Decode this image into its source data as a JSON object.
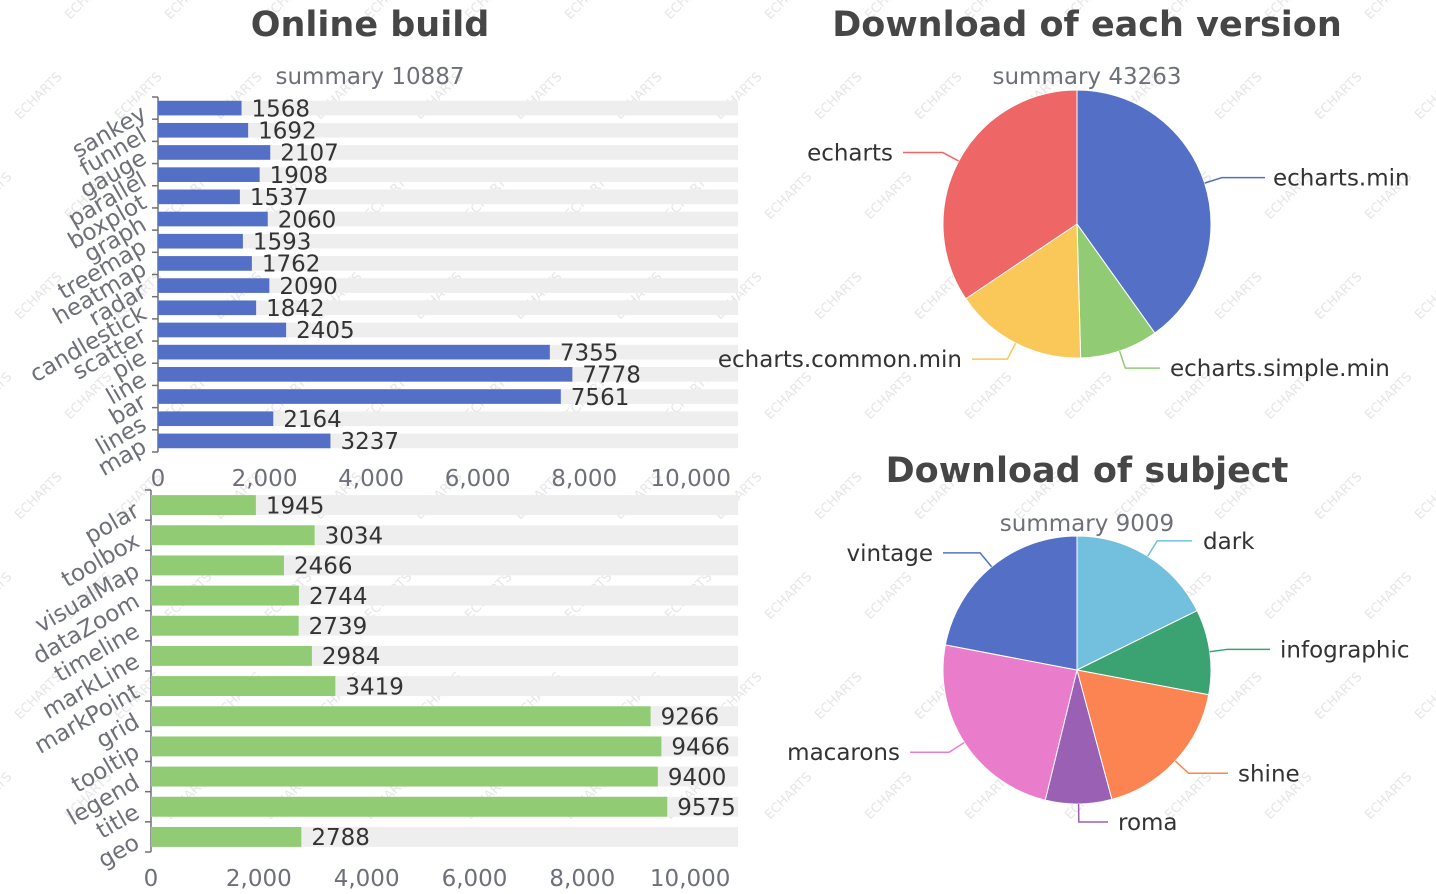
{
  "watermark": "ECHARTS",
  "colors": {
    "bar_bg": "#eeeeee",
    "bar_top": "#5470c6",
    "bar_bottom": "#91cc75",
    "title": "#464646",
    "subtitle": "#6e7079",
    "label": "#333333",
    "axis": "#6e7079",
    "watermark": "#e6e6e6"
  },
  "chart_data": [
    {
      "id": "online-build",
      "type": "bar",
      "orientation": "horizontal",
      "title": "Online build",
      "subtext": "summary 10887",
      "categories": [
        "sankey",
        "funnel",
        "gauge",
        "parallel",
        "boxplot",
        "graph",
        "treemap",
        "heatmap",
        "radar",
        "candlestick",
        "scatter",
        "pie",
        "line",
        "bar",
        "lines",
        "map"
      ],
      "values": [
        1568,
        1692,
        2107,
        1908,
        1537,
        2060,
        1593,
        1762,
        2090,
        1842,
        2405,
        7355,
        7778,
        7561,
        2164,
        3237
      ],
      "xlim": [
        0,
        10887
      ],
      "xticks": [
        "0",
        "2,000",
        "4,000",
        "6,000",
        "8,000",
        "10,000"
      ],
      "xtick_values": [
        0,
        2000,
        4000,
        6000,
        8000,
        10000
      ],
      "background_bar_max": 10887
    },
    {
      "id": "components",
      "type": "bar",
      "orientation": "horizontal",
      "categories": [
        "polar",
        "toolbox",
        "visualMap",
        "dataZoom",
        "timeline",
        "markLine",
        "markPoint",
        "grid",
        "tooltip",
        "legend",
        "title",
        "geo"
      ],
      "values": [
        1945,
        3034,
        2466,
        2744,
        2739,
        2984,
        3419,
        9266,
        9466,
        9400,
        9575,
        2788
      ],
      "xlim": [
        0,
        10887
      ],
      "xticks": [
        "0",
        "2,000",
        "4,000",
        "6,000",
        "8,000",
        "10,000"
      ],
      "xtick_values": [
        0,
        2000,
        4000,
        6000,
        8000,
        10000
      ],
      "background_bar_max": 10887
    },
    {
      "id": "version-pie",
      "type": "pie",
      "title": "Download of each version",
      "subtext": "summary 43263",
      "slices": [
        {
          "name": "echarts.min",
          "value": 17365,
          "color": "#5470c6"
        },
        {
          "name": "echarts.simple.min",
          "value": 4079,
          "color": "#91cc75"
        },
        {
          "name": "echarts.common.min",
          "value": 6929,
          "color": "#fac858"
        },
        {
          "name": "echarts",
          "value": 14890,
          "color": "#ee6666"
        }
      ]
    },
    {
      "id": "subject-pie",
      "type": "pie",
      "title": "Download of subject",
      "subtext": "summary 9009",
      "slices": [
        {
          "name": "dark",
          "value": 1594,
          "color": "#73c0de"
        },
        {
          "name": "infographic",
          "value": 925,
          "color": "#3ba272"
        },
        {
          "name": "shine",
          "value": 1608,
          "color": "#fc8452"
        },
        {
          "name": "roma",
          "value": 721,
          "color": "#9a60b4"
        },
        {
          "name": "macarons",
          "value": 2179,
          "color": "#ea7ccc"
        },
        {
          "name": "vintage",
          "value": 1982,
          "color": "#5470c6"
        }
      ]
    }
  ]
}
